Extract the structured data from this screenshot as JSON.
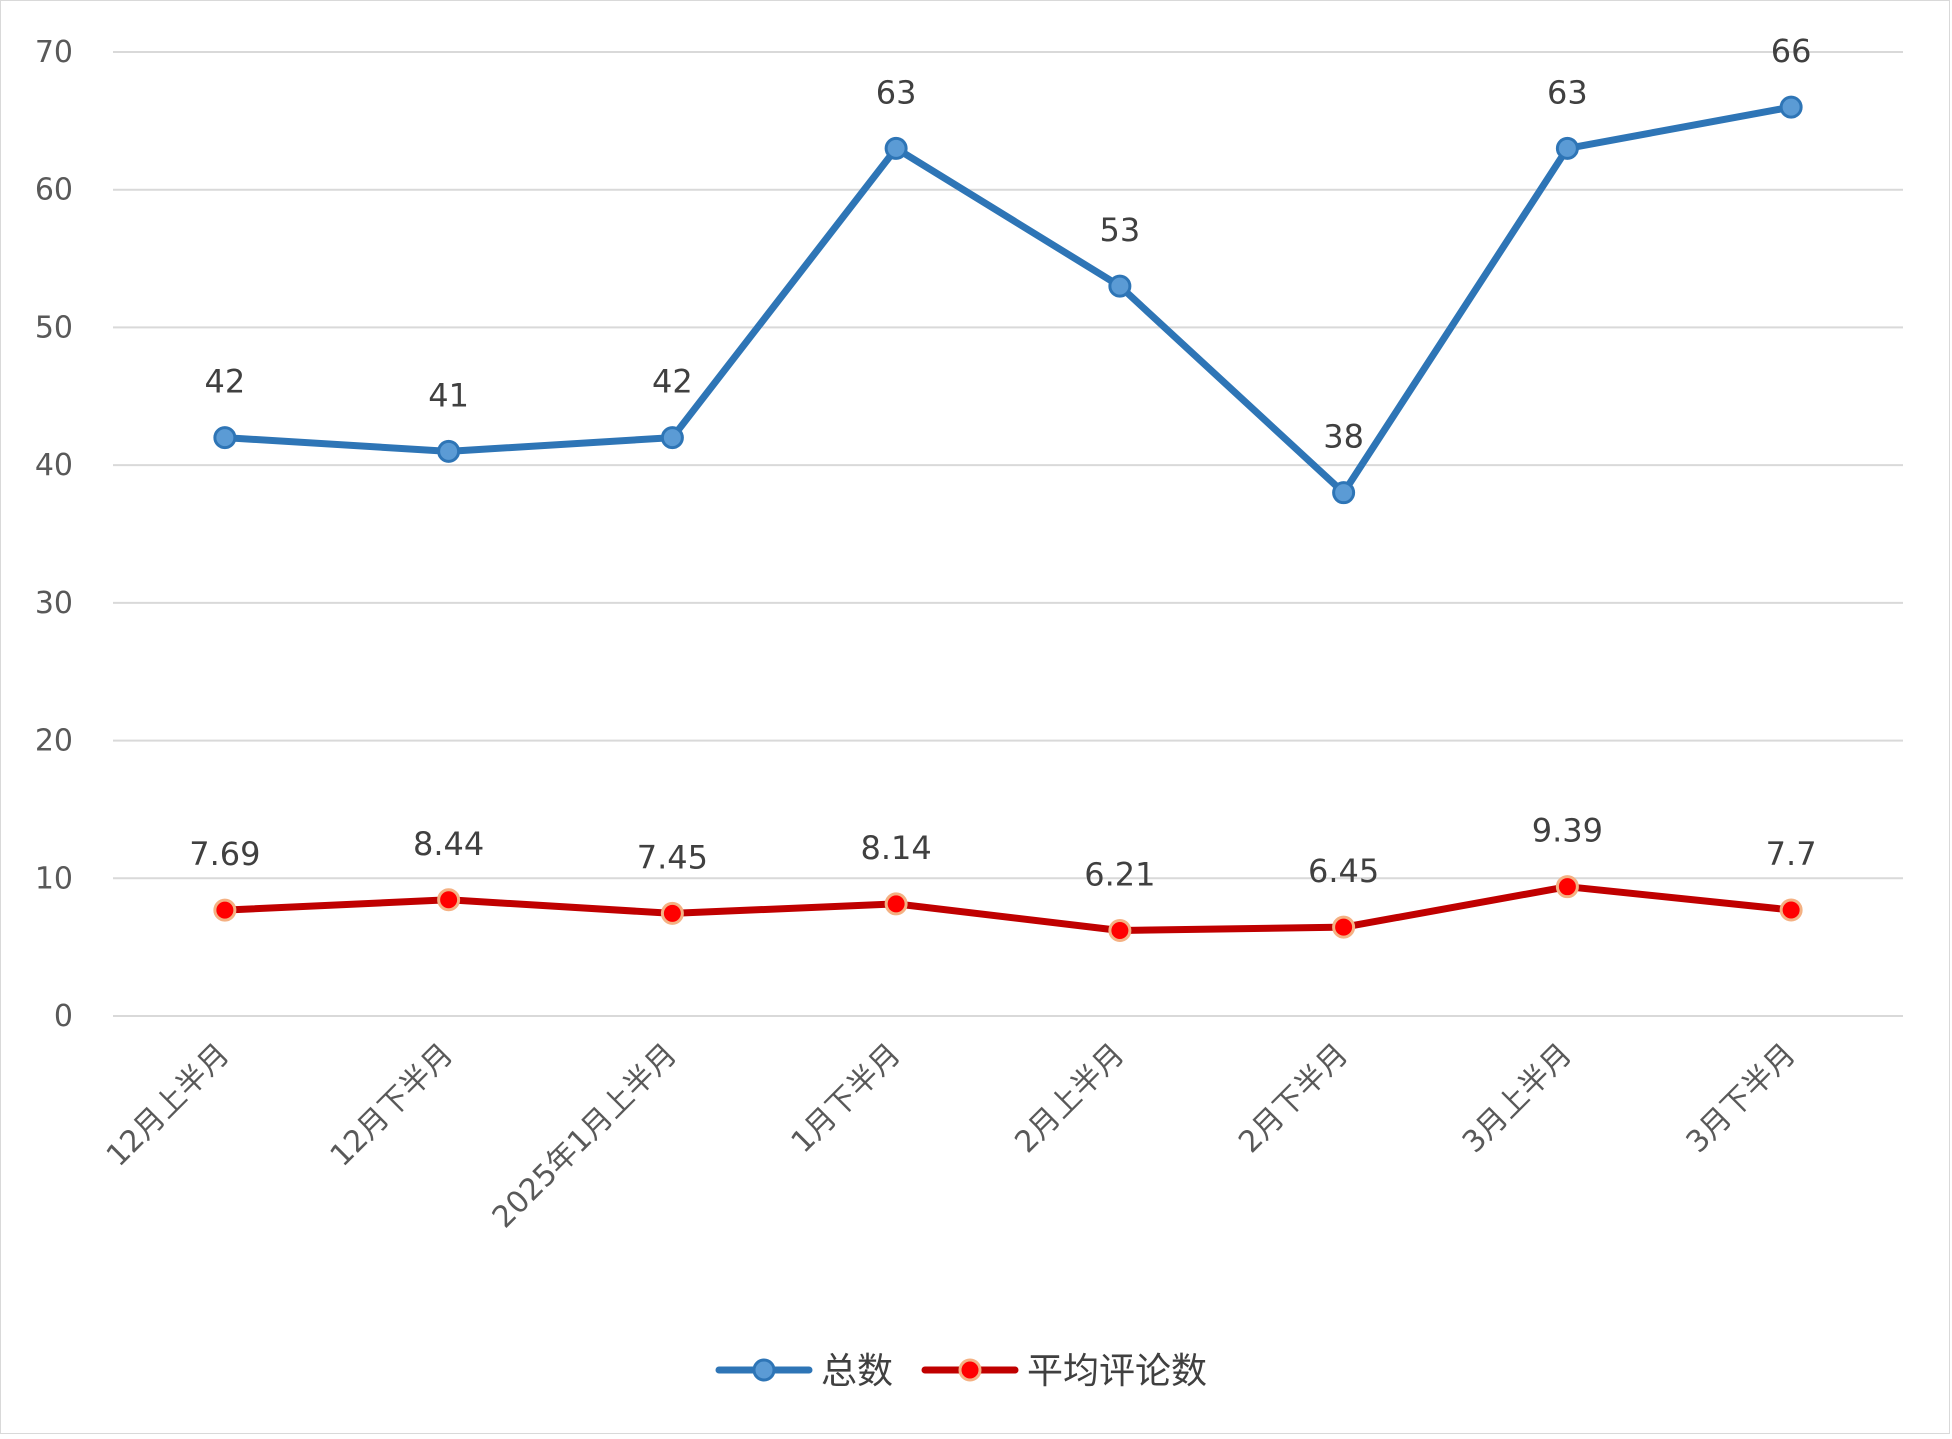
{
  "chart_data": {
    "type": "line",
    "categories": [
      "12月上半月",
      "12月下半月",
      "2025年1月上半月",
      "1月下半月",
      "2月上半月",
      "2月下半月",
      "3月上半月",
      "3月下半月"
    ],
    "series": [
      {
        "name": "总数",
        "values": [
          42,
          41,
          42,
          63,
          53,
          38,
          63,
          66
        ],
        "labels": [
          "42",
          "41",
          "42",
          "63",
          "53",
          "38",
          "63",
          "66"
        ],
        "color": "#2E75B6",
        "marker_fill": "#5B9BD5"
      },
      {
        "name": "平均评论数",
        "values": [
          7.69,
          8.44,
          7.45,
          8.14,
          6.21,
          6.45,
          9.39,
          7.7
        ],
        "labels": [
          "7.69",
          "8.44",
          "7.45",
          "8.14",
          "6.21",
          "6.45",
          "9.39",
          "7.7"
        ],
        "color": "#C00000",
        "marker_fill": "#FF0000",
        "marker_stroke": "#F4B183"
      }
    ],
    "ylim": [
      0,
      70
    ],
    "yticks": [
      "0",
      "10",
      "20",
      "30",
      "40",
      "50",
      "60",
      "70"
    ],
    "grid": true,
    "legend": "bottom",
    "title": "",
    "xlabel": "",
    "ylabel": ""
  }
}
